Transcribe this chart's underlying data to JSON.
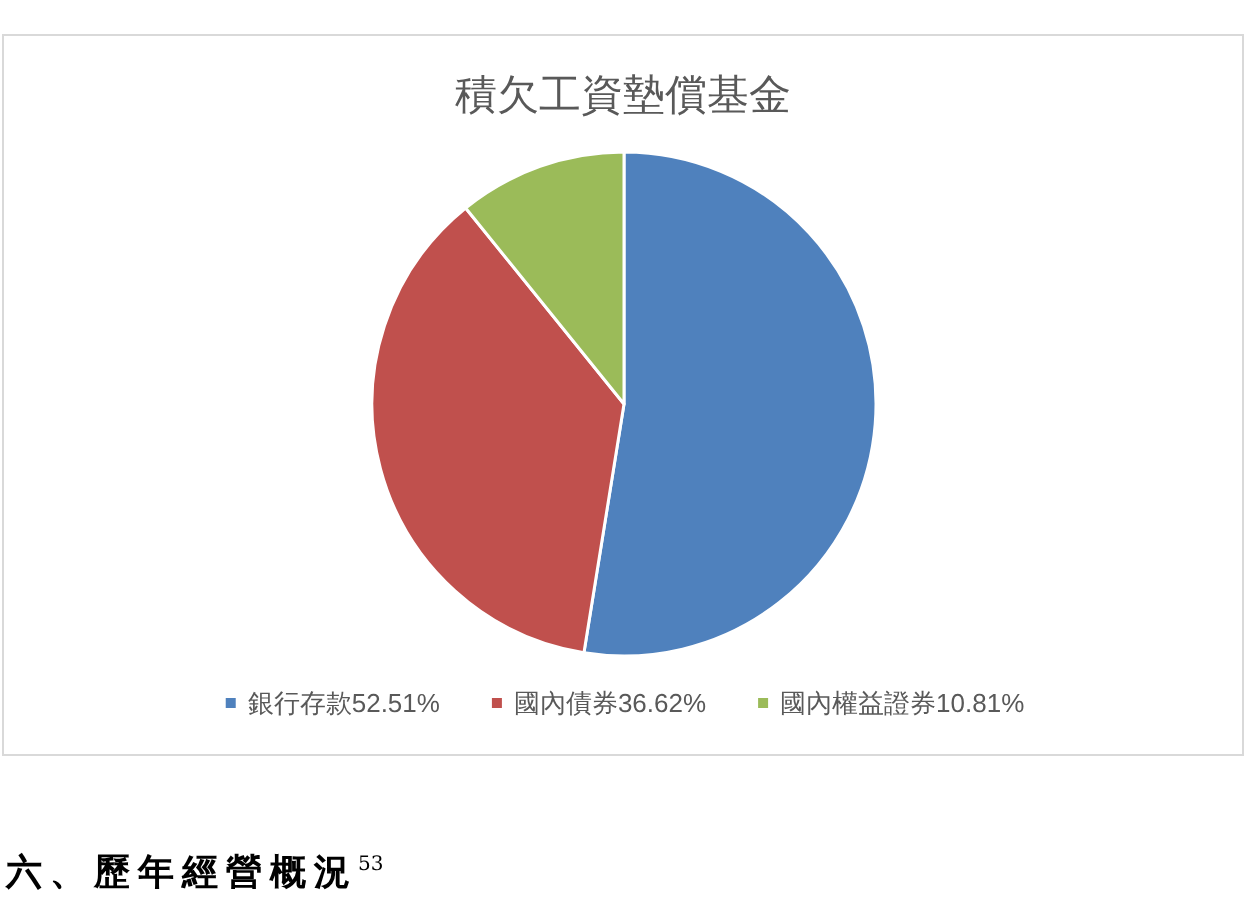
{
  "chart_data": {
    "type": "pie",
    "title": "積欠工資墊償基金",
    "categories": [
      "銀行存款52.51%",
      "國內債券36.62%",
      "國內權益證券10.81%"
    ],
    "values": [
      52.51,
      36.62,
      10.81
    ],
    "colors": [
      "#4f81bd",
      "#c0504d",
      "#9bbb59"
    ],
    "legend": "bottom",
    "annotations": [
      "六、歷年經營概況$^{53}$"
    ]
  }
}
